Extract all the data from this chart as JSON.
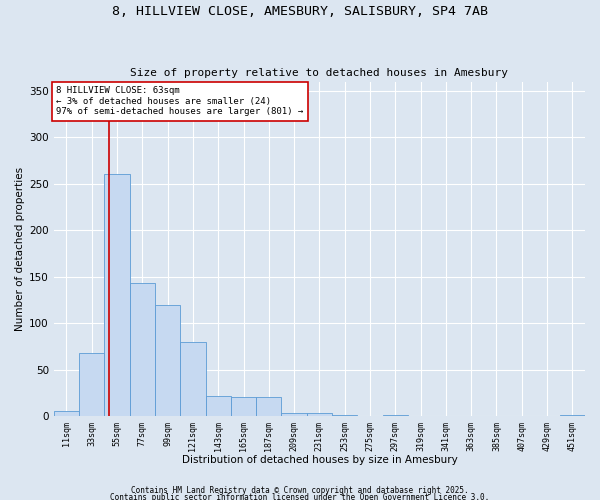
{
  "title_line1": "8, HILLVIEW CLOSE, AMESBURY, SALISBURY, SP4 7AB",
  "title_line2": "Size of property relative to detached houses in Amesbury",
  "xlabel": "Distribution of detached houses by size in Amesbury",
  "ylabel": "Number of detached properties",
  "bin_labels": [
    "11sqm",
    "33sqm",
    "55sqm",
    "77sqm",
    "99sqm",
    "121sqm",
    "143sqm",
    "165sqm",
    "187sqm",
    "209sqm",
    "231sqm",
    "253sqm",
    "275sqm",
    "297sqm",
    "319sqm",
    "341sqm",
    "363sqm",
    "385sqm",
    "407sqm",
    "429sqm",
    "451sqm"
  ],
  "bar_values": [
    5,
    68,
    260,
    143,
    120,
    80,
    22,
    20,
    20,
    3,
    3,
    1,
    0,
    1,
    0,
    0,
    0,
    0,
    0,
    0,
    1
  ],
  "bar_color": "#c6d9f1",
  "bar_edge_color": "#5b9bd5",
  "background_color": "#dce6f1",
  "grid_color": "#ffffff",
  "ylim": [
    0,
    360
  ],
  "yticks": [
    0,
    50,
    100,
    150,
    200,
    250,
    300,
    350
  ],
  "red_line_x": 1.7,
  "annotation_text": "8 HILLVIEW CLOSE: 63sqm\n← 3% of detached houses are smaller (24)\n97% of semi-detached houses are larger (801) →",
  "annotation_box_color": "#ffffff",
  "annotation_box_edge": "#cc0000",
  "footer_line1": "Contains HM Land Registry data © Crown copyright and database right 2025.",
  "footer_line2": "Contains public sector information licensed under the Open Government Licence 3.0."
}
